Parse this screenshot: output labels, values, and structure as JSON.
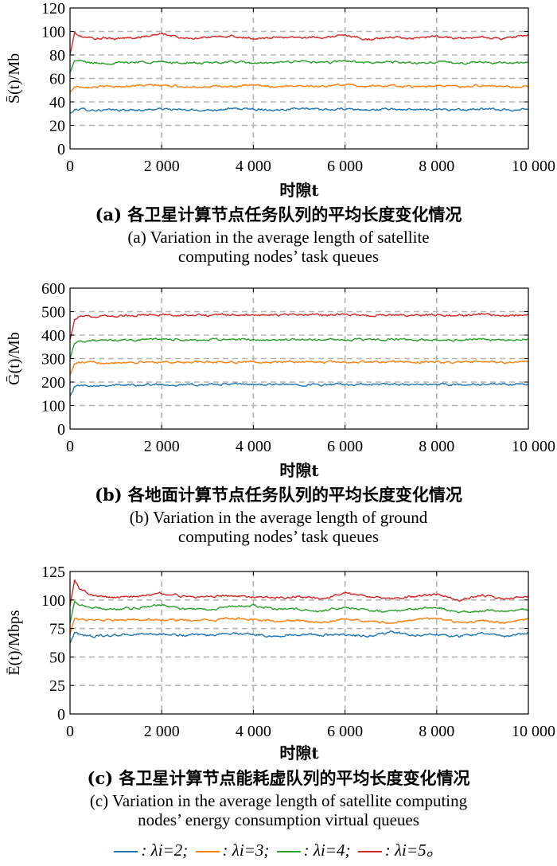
{
  "panels": [
    {
      "ylabel": "S̄(t)/Mb",
      "xlabel": "时隙t",
      "caption_cn": "(a) 各卫星计算节点任务队列的平均长度变化情况",
      "caption_en_lines": [
        "(a) Variation in the average length of satellite",
        "computing nodes’ task queues"
      ]
    },
    {
      "ylabel": "Ḡ(t)/Mb",
      "xlabel": "时隙t",
      "caption_cn": "(b) 各地面计算节点任务队列的平均长度变化情况",
      "caption_en_lines": [
        "(b) Variation in the average length of ground",
        "computing nodes’ task queues"
      ]
    },
    {
      "ylabel": "Ē(t)/Mbps",
      "xlabel": "时隙t",
      "caption_cn": "(c) 各卫星计算节点能耗虚队列的平均长度变化情况",
      "caption_en_lines": [
        "(c) Variation in the average length of satellite computing",
        "nodes’ energy consumption virtual queues"
      ]
    }
  ],
  "legend": [
    {
      "label": ": λi=2;",
      "color": "#1f77b4"
    },
    {
      "label": ": λi=3;",
      "color": "#ff7f0e"
    },
    {
      "label": ": λi=4;",
      "color": "#2ca02c"
    },
    {
      "label": ": λi=5。",
      "color": "#d62728"
    }
  ],
  "chart_data": [
    {
      "type": "line",
      "xlabel": "时隙t",
      "ylabel": "S̄(t)/Mb",
      "xlim": [
        0,
        10000
      ],
      "ylim": [
        0,
        120
      ],
      "xticks": [
        2000,
        4000,
        6000,
        8000,
        10000
      ],
      "xtick_labels": [
        "2 000",
        "4 000",
        "6 000",
        "8 000",
        "10 000"
      ],
      "yticks": [
        0,
        20,
        40,
        60,
        80,
        100,
        120
      ],
      "grid": true,
      "x": [
        0,
        100,
        200,
        500,
        1000,
        1500,
        2000,
        2500,
        3000,
        3500,
        4000,
        4500,
        5000,
        5500,
        6000,
        6500,
        7000,
        7500,
        8000,
        8500,
        9000,
        9500,
        10000
      ],
      "series": [
        {
          "name": "λi=2",
          "color": "#1f77b4",
          "values": [
            30,
            33,
            34,
            33,
            33,
            33,
            34,
            33,
            33,
            34,
            34,
            33,
            35,
            33,
            34,
            33,
            34,
            33,
            34,
            33,
            34,
            33,
            34
          ]
        },
        {
          "name": "λi=3",
          "color": "#ff7f0e",
          "values": [
            48,
            53,
            53,
            53,
            53,
            54,
            54,
            53,
            53,
            53,
            54,
            53,
            54,
            53,
            55,
            53,
            54,
            53,
            54,
            53,
            54,
            53,
            53
          ]
        },
        {
          "name": "λi=4",
          "color": "#2ca02c",
          "values": [
            65,
            75,
            75,
            73,
            73,
            74,
            74,
            73,
            73,
            74,
            73,
            73,
            75,
            73,
            75,
            73,
            74,
            73,
            74,
            73,
            74,
            73,
            74
          ]
        },
        {
          "name": "λi=5",
          "color": "#d62728",
          "values": [
            80,
            99,
            96,
            94,
            94,
            95,
            98,
            94,
            95,
            96,
            94,
            95,
            95,
            95,
            97,
            93,
            95,
            94,
            96,
            94,
            95,
            94,
            97
          ]
        }
      ]
    },
    {
      "type": "line",
      "xlabel": "时隙t",
      "ylabel": "Ḡ(t)/Mb",
      "xlim": [
        0,
        10000
      ],
      "ylim": [
        0,
        600
      ],
      "xticks": [
        2000,
        4000,
        6000,
        8000,
        10000
      ],
      "xtick_labels": [
        "2 000",
        "4 000",
        "6 000",
        "8 000",
        "10 000"
      ],
      "yticks": [
        0,
        100,
        200,
        300,
        400,
        500,
        600
      ],
      "grid": true,
      "x": [
        0,
        100,
        200,
        500,
        1000,
        1500,
        2000,
        2500,
        3000,
        3500,
        4000,
        4500,
        5000,
        5500,
        6000,
        6500,
        7000,
        7500,
        8000,
        8500,
        9000,
        9500,
        10000
      ],
      "series": [
        {
          "name": "λi=2",
          "color": "#1f77b4",
          "values": [
            140,
            180,
            185,
            186,
            187,
            188,
            190,
            188,
            189,
            191,
            190,
            189,
            190,
            188,
            190,
            189,
            190,
            188,
            190,
            189,
            190,
            189,
            190
          ]
        },
        {
          "name": "λi=3",
          "color": "#ff7f0e",
          "values": [
            230,
            278,
            282,
            283,
            284,
            285,
            286,
            284,
            285,
            286,
            285,
            284,
            288,
            284,
            286,
            285,
            286,
            284,
            285,
            284,
            286,
            284,
            285
          ]
        },
        {
          "name": "λi=4",
          "color": "#2ca02c",
          "values": [
            300,
            368,
            374,
            376,
            378,
            380,
            383,
            378,
            379,
            382,
            380,
            378,
            382,
            380,
            381,
            379,
            382,
            378,
            380,
            379,
            383,
            380,
            382
          ]
        },
        {
          "name": "λi=5",
          "color": "#d62728",
          "values": [
            380,
            465,
            478,
            480,
            483,
            485,
            488,
            484,
            485,
            487,
            484,
            485,
            488,
            485,
            489,
            483,
            487,
            484,
            487,
            483,
            488,
            485,
            488
          ]
        }
      ]
    },
    {
      "type": "line",
      "xlabel": "时隙t",
      "ylabel": "Ē(t)/Mbps",
      "xlim": [
        0,
        10000
      ],
      "ylim": [
        0,
        125
      ],
      "xticks": [
        2000,
        4000,
        6000,
        8000,
        10000
      ],
      "xtick_labels": [
        "2 000",
        "4 000",
        "6 000",
        "8 000",
        "10 000"
      ],
      "yticks": [
        0,
        25,
        50,
        75,
        100,
        125
      ],
      "grid": true,
      "x": [
        0,
        100,
        200,
        500,
        1000,
        1500,
        2000,
        2500,
        3000,
        3500,
        4000,
        4500,
        5000,
        5500,
        6000,
        6500,
        7000,
        7500,
        8000,
        8500,
        9000,
        9500,
        10000
      ],
      "series": [
        {
          "name": "λi=2",
          "color": "#1f77b4",
          "values": [
            62,
            72,
            70,
            68,
            69,
            70,
            70,
            69,
            69,
            71,
            70,
            68,
            70,
            69,
            70,
            68,
            72,
            69,
            70,
            68,
            71,
            68,
            71
          ]
        },
        {
          "name": "λi=3",
          "color": "#ff7f0e",
          "values": [
            70,
            85,
            83,
            82,
            82,
            83,
            83,
            82,
            82,
            84,
            83,
            81,
            82,
            80,
            84,
            81,
            80,
            83,
            84,
            80,
            82,
            80,
            83
          ]
        },
        {
          "name": "λi=4",
          "color": "#2ca02c",
          "values": [
            80,
            98,
            96,
            93,
            92,
            93,
            96,
            92,
            92,
            94,
            95,
            92,
            92,
            90,
            94,
            91,
            90,
            92,
            94,
            89,
            91,
            90,
            92
          ]
        },
        {
          "name": "λi=5",
          "color": "#d62728",
          "values": [
            95,
            118,
            110,
            104,
            102,
            103,
            106,
            103,
            103,
            104,
            103,
            102,
            103,
            101,
            106,
            103,
            101,
            103,
            105,
            100,
            104,
            101,
            104
          ]
        }
      ]
    }
  ]
}
